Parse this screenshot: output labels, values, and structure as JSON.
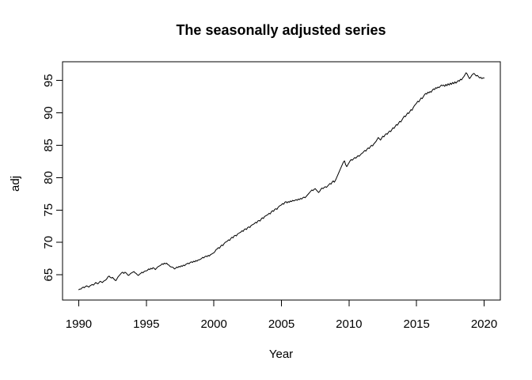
{
  "chart_data": {
    "type": "line",
    "title": "The seasonally adjusted series",
    "xlabel": "Year",
    "ylabel": "adj",
    "series_name": "seasonally-adjusted-series",
    "line_color": "#000000",
    "background_color": "#ffffff",
    "grid": false,
    "legend": "none",
    "x_ticks": [
      1990,
      1995,
      2000,
      2005,
      2010,
      2015,
      2020
    ],
    "y_ticks": [
      65,
      70,
      75,
      80,
      85,
      90,
      95
    ],
    "x_range": [
      1988.8,
      2021.2
    ],
    "y_range": [
      61.1,
      97.9
    ],
    "x_start": 1990,
    "x_step_years": 0.08333333,
    "values": [
      62.7,
      62.8,
      62.8,
      63.0,
      63.1,
      63.0,
      63.2,
      63.3,
      63.2,
      63.1,
      63.3,
      63.4,
      63.5,
      63.4,
      63.6,
      63.8,
      63.7,
      63.6,
      63.8,
      64.0,
      63.9,
      63.8,
      64.0,
      64.1,
      64.2,
      64.4,
      64.7,
      64.8,
      64.6,
      64.5,
      64.6,
      64.4,
      64.2,
      64.1,
      64.4,
      64.7,
      64.9,
      65.1,
      65.3,
      65.4,
      65.2,
      65.4,
      65.3,
      65.1,
      64.9,
      65.0,
      65.2,
      65.3,
      65.4,
      65.5,
      65.3,
      65.2,
      65.0,
      64.9,
      65.1,
      65.2,
      65.4,
      65.3,
      65.5,
      65.6,
      65.6,
      65.7,
      65.9,
      65.8,
      66.0,
      65.9,
      66.1,
      66.0,
      65.8,
      66.0,
      66.2,
      66.3,
      66.4,
      66.5,
      66.7,
      66.6,
      66.8,
      66.7,
      66.8,
      66.6,
      66.5,
      66.3,
      66.2,
      66.2,
      66.1,
      65.9,
      66.0,
      66.2,
      66.1,
      66.3,
      66.2,
      66.4,
      66.3,
      66.5,
      66.4,
      66.6,
      66.7,
      66.8,
      66.7,
      66.9,
      67.0,
      66.9,
      67.1,
      67.0,
      67.2,
      67.1,
      67.3,
      67.3,
      67.4,
      67.5,
      67.7,
      67.6,
      67.8,
      67.9,
      67.8,
      68.0,
      67.9,
      68.1,
      68.2,
      68.3,
      68.4,
      68.6,
      68.9,
      69.0,
      69.2,
      69.1,
      69.4,
      69.6,
      69.5,
      69.8,
      70.0,
      70.1,
      70.2,
      70.4,
      70.3,
      70.6,
      70.8,
      70.7,
      71.0,
      71.1,
      71.0,
      71.3,
      71.4,
      71.5,
      71.6,
      71.8,
      71.7,
      72.0,
      72.1,
      72.0,
      72.3,
      72.4,
      72.3,
      72.6,
      72.7,
      72.8,
      72.9,
      73.1,
      73.0,
      73.3,
      73.4,
      73.3,
      73.6,
      73.8,
      73.7,
      74.0,
      74.1,
      74.2,
      74.3,
      74.5,
      74.4,
      74.7,
      74.9,
      74.8,
      75.1,
      75.2,
      75.1,
      75.4,
      75.6,
      75.7,
      75.8,
      76.0,
      75.9,
      76.2,
      76.3,
      76.1,
      76.3,
      76.2,
      76.4,
      76.3,
      76.5,
      76.4,
      76.5,
      76.6,
      76.5,
      76.7,
      76.6,
      76.8,
      76.7,
      76.9,
      77.0,
      76.9,
      77.1,
      77.3,
      77.5,
      77.7,
      77.9,
      78.1,
      78.0,
      78.2,
      78.3,
      78.1,
      77.9,
      77.7,
      77.9,
      78.2,
      78.4,
      78.3,
      78.5,
      78.6,
      78.5,
      78.7,
      78.9,
      79.1,
      79.0,
      79.3,
      79.5,
      79.3,
      79.6,
      80.0,
      80.4,
      80.8,
      81.2,
      81.6,
      82.0,
      82.4,
      82.6,
      82.0,
      81.7,
      82.0,
      82.3,
      82.6,
      82.8,
      82.7,
      82.9,
      83.1,
      83.0,
      83.2,
      83.4,
      83.3,
      83.5,
      83.7,
      83.8,
      84.0,
      84.2,
      84.1,
      84.4,
      84.6,
      84.5,
      84.8,
      85.0,
      84.9,
      85.2,
      85.4,
      85.6,
      85.9,
      86.2,
      86.0,
      85.8,
      86.1,
      86.4,
      86.3,
      86.6,
      86.8,
      86.7,
      87.0,
      87.2,
      87.1,
      87.4,
      87.7,
      87.6,
      87.9,
      88.2,
      88.1,
      88.4,
      88.7,
      88.6,
      88.9,
      89.2,
      89.5,
      89.4,
      89.7,
      90.0,
      89.9,
      90.2,
      90.5,
      90.4,
      90.8,
      91.1,
      91.3,
      91.5,
      91.8,
      91.7,
      92.0,
      92.3,
      92.2,
      92.5,
      92.8,
      93.0,
      92.9,
      93.2,
      93.1,
      93.3,
      93.2,
      93.5,
      93.7,
      93.6,
      93.9,
      93.8,
      94.0,
      93.9,
      94.1,
      94.3,
      94.2,
      94.3,
      94.1,
      94.4,
      94.2,
      94.5,
      94.3,
      94.6,
      94.4,
      94.7,
      94.5,
      94.8,
      94.6,
      94.8,
      95.0,
      94.9,
      95.2,
      95.1,
      95.4,
      95.6,
      95.9,
      96.2,
      96.0,
      95.6,
      95.3,
      95.5,
      95.8,
      96.0,
      96.1,
      95.9,
      95.7,
      95.8,
      95.6,
      95.4,
      95.5,
      95.3,
      95.4,
      95.4
    ]
  }
}
